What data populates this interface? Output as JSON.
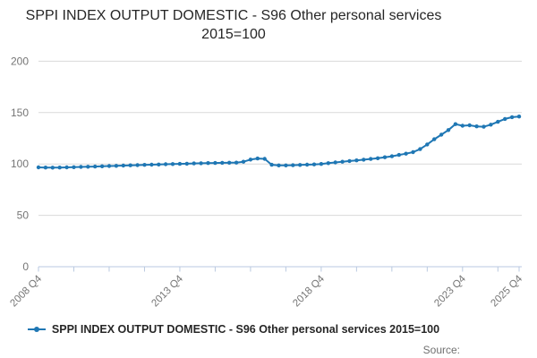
{
  "page": {
    "title": "SPPI INDEX OUTPUT DOMESTIC - S96 Other personal services 2015=100"
  },
  "legend": {
    "label": "SPPI INDEX OUTPUT DOMESTIC - S96 Other personal services 2015=100"
  },
  "source": {
    "label": "Source:"
  },
  "colors": {
    "background": "#ffffff",
    "line": "#1f77b4",
    "grid": "#d9d9d9",
    "axis": "#bac9e0",
    "tick_text": "#757575",
    "title_text": "#262626",
    "muted_text": "#707070"
  },
  "chart_data": {
    "type": "line",
    "title": "SPPI INDEX OUTPUT DOMESTIC - S96 Other personal services 2015=100",
    "xlabel": "",
    "ylabel": "",
    "grid": "horizontal",
    "legend_position": "bottom",
    "x_periods": {
      "start": "2008 Q4",
      "end": "2025 Q4",
      "frequency": "quarterly",
      "count": 69
    },
    "x_axis": {
      "tick_labels": [
        {
          "index": 0,
          "label": "2008 Q4"
        },
        {
          "index": 20,
          "label": "2013 Q4"
        },
        {
          "index": 40,
          "label": "2018 Q4"
        },
        {
          "index": 60,
          "label": "2023 Q4"
        },
        {
          "index": 68,
          "label": "2025 Q4"
        }
      ],
      "minor_tick_every": 5,
      "label_rotation_deg": -45
    },
    "y_axis": {
      "ticks": [
        0,
        50,
        100,
        150,
        200
      ],
      "ylim": [
        0,
        212
      ]
    },
    "series": [
      {
        "name": "SPPI INDEX OUTPUT DOMESTIC - S96 Other personal services 2015=100",
        "values": [
          96.7,
          96.5,
          96.4,
          96.5,
          96.7,
          96.9,
          97.1,
          97.3,
          97.5,
          97.7,
          98.0,
          98.2,
          98.4,
          98.7,
          98.9,
          99.1,
          99.3,
          99.5,
          99.7,
          99.9,
          100.1,
          100.3,
          100.5,
          100.7,
          100.9,
          101.0,
          101.1,
          101.2,
          101.3,
          102.2,
          104.3,
          105.3,
          105.0,
          99.2,
          98.6,
          98.6,
          98.8,
          99.0,
          99.3,
          99.6,
          100.0,
          100.8,
          101.5,
          102.2,
          102.9,
          103.5,
          104.2,
          104.9,
          105.6,
          106.5,
          107.5,
          108.8,
          110.0,
          111.5,
          114.5,
          119.0,
          124.0,
          128.5,
          133.0,
          138.8,
          137.2,
          137.6,
          136.6,
          136.2,
          138.2,
          141.0,
          143.8,
          145.6,
          146.2
        ]
      }
    ]
  }
}
